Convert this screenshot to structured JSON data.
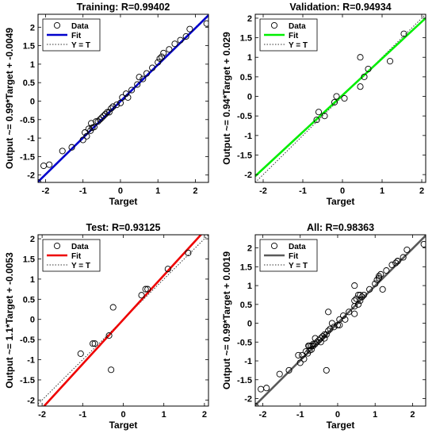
{
  "chart_data": [
    {
      "type": "scatter",
      "title": "Training: R=0.99402",
      "xlabel": "Target",
      "ylabel": "Output ~= 0.99*Target + -0.0049",
      "xlim": [
        -2.2,
        2.35
      ],
      "ylim": [
        -2.2,
        2.35
      ],
      "xticks": [
        -2,
        -1,
        0,
        1,
        2
      ],
      "yticks": [
        -2,
        -1.5,
        -1,
        -0.5,
        0,
        0.5,
        1,
        1.5,
        2
      ],
      "fit": {
        "slope": 0.99,
        "intercept": -0.0049,
        "color": "#0000cc"
      },
      "legend": {
        "position": "top-left",
        "entries": [
          "Data",
          "Fit",
          "Y = T"
        ]
      },
      "grid": false,
      "points": [
        [
          -2.2,
          -2.2
        ],
        [
          -2.05,
          -1.75
        ],
        [
          -1.9,
          -1.72
        ],
        [
          -1.55,
          -1.35
        ],
        [
          -1.3,
          -1.25
        ],
        [
          -1.0,
          -1.05
        ],
        [
          -0.95,
          -0.85
        ],
        [
          -0.9,
          -0.95
        ],
        [
          -0.85,
          -0.75
        ],
        [
          -0.8,
          -0.8
        ],
        [
          -0.78,
          -0.6
        ],
        [
          -0.75,
          -0.72
        ],
        [
          -0.7,
          -0.7
        ],
        [
          -0.65,
          -0.55
        ],
        [
          -0.6,
          -0.55
        ],
        [
          -0.55,
          -0.5
        ],
        [
          -0.5,
          -0.45
        ],
        [
          -0.45,
          -0.4
        ],
        [
          -0.4,
          -0.35
        ],
        [
          -0.35,
          -0.3
        ],
        [
          -0.3,
          -0.3
        ],
        [
          -0.25,
          -0.2
        ],
        [
          -0.2,
          -0.15
        ],
        [
          -0.1,
          -0.1
        ],
        [
          0.0,
          -0.05
        ],
        [
          0.05,
          0.1
        ],
        [
          0.15,
          0.2
        ],
        [
          0.2,
          0.1
        ],
        [
          0.3,
          0.3
        ],
        [
          0.45,
          0.45
        ],
        [
          0.5,
          0.65
        ],
        [
          0.6,
          0.6
        ],
        [
          0.7,
          0.75
        ],
        [
          0.85,
          0.9
        ],
        [
          1.0,
          1.05
        ],
        [
          1.05,
          1.15
        ],
        [
          1.1,
          1.2
        ],
        [
          1.15,
          1.3
        ],
        [
          1.3,
          1.4
        ],
        [
          1.45,
          1.55
        ],
        [
          1.6,
          1.65
        ],
        [
          1.75,
          1.75
        ],
        [
          1.85,
          1.95
        ],
        [
          2.3,
          2.1
        ]
      ]
    },
    {
      "type": "scatter",
      "title": "Validation: R=0.94934",
      "xlabel": "Target",
      "ylabel": "Output ~= 0.94*Target + 0.029",
      "xlim": [
        -2.2,
        2.1
      ],
      "ylim": [
        -2.2,
        2.1
      ],
      "xticks": [
        -2,
        -1,
        0,
        1,
        2
      ],
      "yticks": [
        -2,
        -1.5,
        -1,
        -0.5,
        0,
        0.5,
        1,
        1.5,
        2
      ],
      "fit": {
        "slope": 0.94,
        "intercept": 0.029,
        "color": "#00ee00"
      },
      "legend": {
        "position": "top-left",
        "entries": [
          "Data",
          "Fit",
          "Y = T"
        ]
      },
      "grid": false,
      "points": [
        [
          -0.65,
          -0.6
        ],
        [
          -0.6,
          -0.4
        ],
        [
          -0.45,
          -0.5
        ],
        [
          -0.2,
          -0.15
        ],
        [
          -0.15,
          0.0
        ],
        [
          0.05,
          -0.05
        ],
        [
          0.45,
          0.25
        ],
        [
          0.45,
          1.0
        ],
        [
          0.55,
          0.5
        ],
        [
          0.65,
          0.7
        ],
        [
          1.2,
          0.9
        ],
        [
          1.55,
          1.6
        ]
      ]
    },
    {
      "type": "scatter",
      "title": "Test: R=0.93125",
      "xlabel": "Target",
      "ylabel": "Output ~= 1.1*Target + -0.0053",
      "xlim": [
        -2.1,
        2.1
      ],
      "ylim": [
        -2.15,
        2.1
      ],
      "xticks": [
        -2,
        -1,
        0,
        1,
        2
      ],
      "yticks": [
        -2,
        -1.5,
        -1,
        -0.5,
        0,
        0.5,
        1,
        1.5,
        2
      ],
      "fit": {
        "slope": 1.1,
        "intercept": -0.0053,
        "color": "#ee0000"
      },
      "legend": {
        "position": "top-left",
        "entries": [
          "Data",
          "Fit",
          "Y = T"
        ]
      },
      "grid": false,
      "points": [
        [
          -1.05,
          -0.85
        ],
        [
          -0.75,
          -0.6
        ],
        [
          -0.7,
          -0.6
        ],
        [
          -0.35,
          -0.4
        ],
        [
          -0.3,
          -1.25
        ],
        [
          -0.25,
          0.3
        ],
        [
          0.45,
          0.6
        ],
        [
          0.55,
          0.75
        ],
        [
          0.6,
          0.75
        ],
        [
          1.1,
          1.25
        ],
        [
          1.6,
          1.65
        ]
      ]
    },
    {
      "type": "scatter",
      "title": "All: R=0.98363",
      "xlabel": "Target",
      "ylabel": "Output ~= 0.99*Target + 0.0019",
      "xlim": [
        -2.2,
        2.35
      ],
      "ylim": [
        -2.2,
        2.35
      ],
      "xticks": [
        -2,
        -1,
        0,
        1,
        2
      ],
      "yticks": [
        -2,
        -1.5,
        -1,
        -0.5,
        0,
        0.5,
        1,
        1.5,
        2
      ],
      "fit": {
        "slope": 0.99,
        "intercept": 0.0019,
        "color": "#5a5a5a"
      },
      "legend": {
        "position": "top-left",
        "entries": [
          "Data",
          "Fit",
          "Y = T"
        ]
      },
      "grid": false,
      "points": [
        [
          -2.2,
          -2.2
        ],
        [
          -2.05,
          -1.75
        ],
        [
          -1.9,
          -1.72
        ],
        [
          -1.55,
          -1.35
        ],
        [
          -1.3,
          -1.25
        ],
        [
          -1.05,
          -0.85
        ],
        [
          -1.0,
          -1.05
        ],
        [
          -0.95,
          -0.85
        ],
        [
          -0.9,
          -0.95
        ],
        [
          -0.85,
          -0.75
        ],
        [
          -0.8,
          -0.8
        ],
        [
          -0.78,
          -0.6
        ],
        [
          -0.75,
          -0.72
        ],
        [
          -0.75,
          -0.6
        ],
        [
          -0.7,
          -0.7
        ],
        [
          -0.7,
          -0.6
        ],
        [
          -0.65,
          -0.6
        ],
        [
          -0.65,
          -0.55
        ],
        [
          -0.6,
          -0.4
        ],
        [
          -0.6,
          -0.55
        ],
        [
          -0.55,
          -0.5
        ],
        [
          -0.5,
          -0.45
        ],
        [
          -0.45,
          -0.5
        ],
        [
          -0.45,
          -0.4
        ],
        [
          -0.4,
          -0.35
        ],
        [
          -0.35,
          -0.4
        ],
        [
          -0.35,
          -0.3
        ],
        [
          -0.3,
          -0.3
        ],
        [
          -0.3,
          -1.25
        ],
        [
          -0.25,
          0.3
        ],
        [
          -0.25,
          -0.2
        ],
        [
          -0.2,
          -0.15
        ],
        [
          -0.15,
          0.0
        ],
        [
          -0.1,
          -0.1
        ],
        [
          0.0,
          -0.05
        ],
        [
          0.05,
          -0.05
        ],
        [
          0.05,
          0.1
        ],
        [
          0.15,
          0.2
        ],
        [
          0.2,
          0.1
        ],
        [
          0.3,
          0.3
        ],
        [
          0.45,
          0.45
        ],
        [
          0.45,
          0.6
        ],
        [
          0.45,
          0.25
        ],
        [
          0.45,
          1.0
        ],
        [
          0.5,
          0.65
        ],
        [
          0.55,
          0.5
        ],
        [
          0.55,
          0.75
        ],
        [
          0.6,
          0.6
        ],
        [
          0.6,
          0.75
        ],
        [
          0.65,
          0.7
        ],
        [
          0.7,
          0.75
        ],
        [
          0.85,
          0.9
        ],
        [
          1.0,
          1.05
        ],
        [
          1.05,
          1.15
        ],
        [
          1.1,
          1.2
        ],
        [
          1.1,
          1.25
        ],
        [
          1.15,
          1.3
        ],
        [
          1.2,
          0.9
        ],
        [
          1.3,
          1.4
        ],
        [
          1.45,
          1.55
        ],
        [
          1.55,
          1.6
        ],
        [
          1.6,
          1.65
        ],
        [
          1.6,
          1.65
        ],
        [
          1.75,
          1.75
        ],
        [
          1.85,
          1.95
        ],
        [
          2.3,
          2.1
        ]
      ]
    }
  ]
}
